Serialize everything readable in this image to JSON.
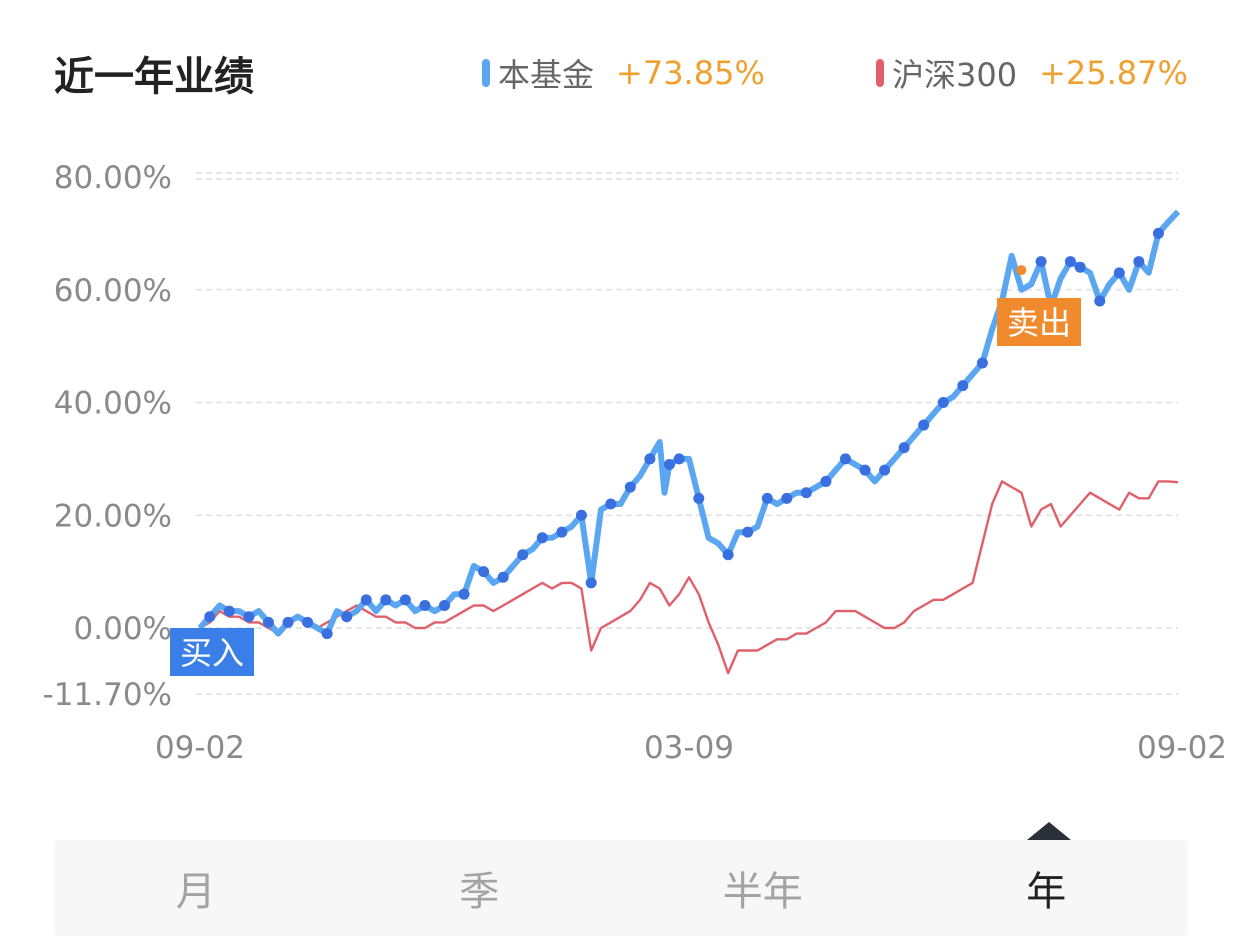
{
  "header": {
    "title": "近一年业绩",
    "legend": [
      {
        "name": "本基金",
        "change": "+73.85%",
        "color": "#5aa6f0"
      },
      {
        "name": "沪深300",
        "change": "+25.87%",
        "color": "#e0606a"
      }
    ]
  },
  "markers": {
    "buy_label": "买入",
    "sell_label": "卖出",
    "buy_color": "#3a7ee8",
    "sell_color": "#f08a2c"
  },
  "tabs": [
    {
      "label": "月",
      "active": false
    },
    {
      "label": "季",
      "active": false
    },
    {
      "label": "半年",
      "active": false
    },
    {
      "label": "年",
      "active": true
    }
  ],
  "chart_data": {
    "type": "line",
    "y_tick_labels": [
      "80.00%",
      "60.00%",
      "40.00%",
      "20.00%",
      "0.00%",
      "-11.70%"
    ],
    "y_ticks": [
      80,
      60,
      40,
      20,
      0,
      -11.7
    ],
    "x_tick_labels": [
      "09-02",
      "03-09",
      "09-02"
    ],
    "x_ticks": [
      0,
      0.5,
      1
    ],
    "ylim": [
      -11.7,
      80
    ],
    "grid": true,
    "legend_position": "top-right",
    "series": [
      {
        "name": "本基金",
        "color": "#5aa6f0",
        "points": [
          [
            0,
            0
          ],
          [
            0.01,
            2
          ],
          [
            0.02,
            4
          ],
          [
            0.03,
            3
          ],
          [
            0.04,
            3
          ],
          [
            0.05,
            2
          ],
          [
            0.06,
            3
          ],
          [
            0.07,
            1
          ],
          [
            0.08,
            -1
          ],
          [
            0.09,
            1
          ],
          [
            0.1,
            2
          ],
          [
            0.11,
            1
          ],
          [
            0.12,
            0
          ],
          [
            0.13,
            -1
          ],
          [
            0.14,
            3
          ],
          [
            0.15,
            2
          ],
          [
            0.16,
            3
          ],
          [
            0.17,
            5
          ],
          [
            0.18,
            3
          ],
          [
            0.19,
            5
          ],
          [
            0.2,
            4
          ],
          [
            0.21,
            5
          ],
          [
            0.22,
            3
          ],
          [
            0.23,
            4
          ],
          [
            0.24,
            3
          ],
          [
            0.25,
            4
          ],
          [
            0.26,
            6
          ],
          [
            0.27,
            6
          ],
          [
            0.28,
            11
          ],
          [
            0.29,
            10
          ],
          [
            0.3,
            8
          ],
          [
            0.31,
            9
          ],
          [
            0.32,
            11
          ],
          [
            0.33,
            13
          ],
          [
            0.34,
            14
          ],
          [
            0.35,
            16
          ],
          [
            0.36,
            16
          ],
          [
            0.37,
            17
          ],
          [
            0.38,
            18
          ],
          [
            0.39,
            20
          ],
          [
            0.4,
            8
          ],
          [
            0.41,
            21
          ],
          [
            0.42,
            22
          ],
          [
            0.43,
            22
          ],
          [
            0.44,
            25
          ],
          [
            0.45,
            27
          ],
          [
            0.46,
            30
          ],
          [
            0.47,
            33
          ],
          [
            0.475,
            24
          ],
          [
            0.48,
            29
          ],
          [
            0.49,
            30
          ],
          [
            0.5,
            30
          ],
          [
            0.51,
            23
          ],
          [
            0.52,
            16
          ],
          [
            0.53,
            15
          ],
          [
            0.54,
            13
          ],
          [
            0.55,
            17
          ],
          [
            0.56,
            17
          ],
          [
            0.57,
            18
          ],
          [
            0.58,
            23
          ],
          [
            0.59,
            22
          ],
          [
            0.6,
            23
          ],
          [
            0.61,
            24
          ],
          [
            0.62,
            24
          ],
          [
            0.63,
            25
          ],
          [
            0.64,
            26
          ],
          [
            0.65,
            28
          ],
          [
            0.66,
            30
          ],
          [
            0.67,
            29
          ],
          [
            0.68,
            28
          ],
          [
            0.69,
            26
          ],
          [
            0.7,
            28
          ],
          [
            0.71,
            30
          ],
          [
            0.72,
            32
          ],
          [
            0.73,
            34
          ],
          [
            0.74,
            36
          ],
          [
            0.75,
            38
          ],
          [
            0.76,
            40
          ],
          [
            0.77,
            41
          ],
          [
            0.78,
            43
          ],
          [
            0.79,
            45
          ],
          [
            0.8,
            47
          ],
          [
            0.81,
            53
          ],
          [
            0.82,
            58
          ],
          [
            0.83,
            66
          ],
          [
            0.84,
            60
          ],
          [
            0.85,
            61
          ],
          [
            0.86,
            65
          ],
          [
            0.87,
            57
          ],
          [
            0.88,
            62
          ],
          [
            0.89,
            65
          ],
          [
            0.9,
            64
          ],
          [
            0.91,
            63
          ],
          [
            0.92,
            58
          ],
          [
            0.93,
            61
          ],
          [
            0.94,
            63
          ],
          [
            0.95,
            60
          ],
          [
            0.96,
            65
          ],
          [
            0.97,
            63
          ],
          [
            0.98,
            70
          ],
          [
            0.99,
            72
          ],
          [
            1,
            73.85
          ]
        ]
      },
      {
        "name": "沪深300",
        "color": "#e0606a",
        "points": [
          [
            0,
            0
          ],
          [
            0.01,
            1
          ],
          [
            0.02,
            3
          ],
          [
            0.03,
            2
          ],
          [
            0.04,
            2
          ],
          [
            0.05,
            1
          ],
          [
            0.06,
            1
          ],
          [
            0.07,
            0
          ],
          [
            0.08,
            -1
          ],
          [
            0.09,
            1
          ],
          [
            0.1,
            2
          ],
          [
            0.11,
            1
          ],
          [
            0.12,
            0
          ],
          [
            0.13,
            1
          ],
          [
            0.14,
            2
          ],
          [
            0.15,
            3
          ],
          [
            0.16,
            4
          ],
          [
            0.17,
            3
          ],
          [
            0.18,
            2
          ],
          [
            0.19,
            2
          ],
          [
            0.2,
            1
          ],
          [
            0.21,
            1
          ],
          [
            0.22,
            0
          ],
          [
            0.23,
            0
          ],
          [
            0.24,
            1
          ],
          [
            0.25,
            1
          ],
          [
            0.26,
            2
          ],
          [
            0.27,
            3
          ],
          [
            0.28,
            4
          ],
          [
            0.29,
            4
          ],
          [
            0.3,
            3
          ],
          [
            0.31,
            4
          ],
          [
            0.32,
            5
          ],
          [
            0.33,
            6
          ],
          [
            0.34,
            7
          ],
          [
            0.35,
            8
          ],
          [
            0.36,
            7
          ],
          [
            0.37,
            8
          ],
          [
            0.38,
            8
          ],
          [
            0.39,
            7
          ],
          [
            0.4,
            -4
          ],
          [
            0.41,
            0
          ],
          [
            0.42,
            1
          ],
          [
            0.43,
            2
          ],
          [
            0.44,
            3
          ],
          [
            0.45,
            5
          ],
          [
            0.46,
            8
          ],
          [
            0.47,
            7
          ],
          [
            0.48,
            4
          ],
          [
            0.49,
            6
          ],
          [
            0.5,
            9
          ],
          [
            0.51,
            6
          ],
          [
            0.52,
            1
          ],
          [
            0.53,
            -3
          ],
          [
            0.54,
            -8
          ],
          [
            0.55,
            -4
          ],
          [
            0.56,
            -4
          ],
          [
            0.57,
            -4
          ],
          [
            0.58,
            -3
          ],
          [
            0.59,
            -2
          ],
          [
            0.6,
            -2
          ],
          [
            0.61,
            -1
          ],
          [
            0.62,
            -1
          ],
          [
            0.63,
            0
          ],
          [
            0.64,
            1
          ],
          [
            0.65,
            3
          ],
          [
            0.66,
            3
          ],
          [
            0.67,
            3
          ],
          [
            0.68,
            2
          ],
          [
            0.69,
            1
          ],
          [
            0.7,
            0
          ],
          [
            0.71,
            0
          ],
          [
            0.72,
            1
          ],
          [
            0.73,
            3
          ],
          [
            0.74,
            4
          ],
          [
            0.75,
            5
          ],
          [
            0.76,
            5
          ],
          [
            0.77,
            6
          ],
          [
            0.78,
            7
          ],
          [
            0.79,
            8
          ],
          [
            0.8,
            15
          ],
          [
            0.81,
            22
          ],
          [
            0.82,
            26
          ],
          [
            0.83,
            25
          ],
          [
            0.84,
            24
          ],
          [
            0.85,
            18
          ],
          [
            0.86,
            21
          ],
          [
            0.87,
            22
          ],
          [
            0.88,
            18
          ],
          [
            0.89,
            20
          ],
          [
            0.9,
            22
          ],
          [
            0.91,
            24
          ],
          [
            0.92,
            23
          ],
          [
            0.93,
            22
          ],
          [
            0.94,
            21
          ],
          [
            0.95,
            24
          ],
          [
            0.96,
            23
          ],
          [
            0.97,
            23
          ],
          [
            0.98,
            26
          ],
          [
            0.99,
            26
          ],
          [
            1,
            25.87
          ]
        ]
      }
    ],
    "fund_dots_x": [
      0.01,
      0.03,
      0.05,
      0.07,
      0.09,
      0.11,
      0.13,
      0.15,
      0.17,
      0.19,
      0.21,
      0.23,
      0.25,
      0.27,
      0.29,
      0.31,
      0.33,
      0.35,
      0.37,
      0.39,
      0.4,
      0.42,
      0.44,
      0.46,
      0.48,
      0.49,
      0.51,
      0.54,
      0.56,
      0.58,
      0.6,
      0.62,
      0.64,
      0.66,
      0.68,
      0.7,
      0.72,
      0.74,
      0.76,
      0.78,
      0.8,
      0.86,
      0.87,
      0.89,
      0.9,
      0.92,
      0.94,
      0.96,
      0.98
    ],
    "buy_x": 0.0,
    "sell_x": 0.85
  }
}
